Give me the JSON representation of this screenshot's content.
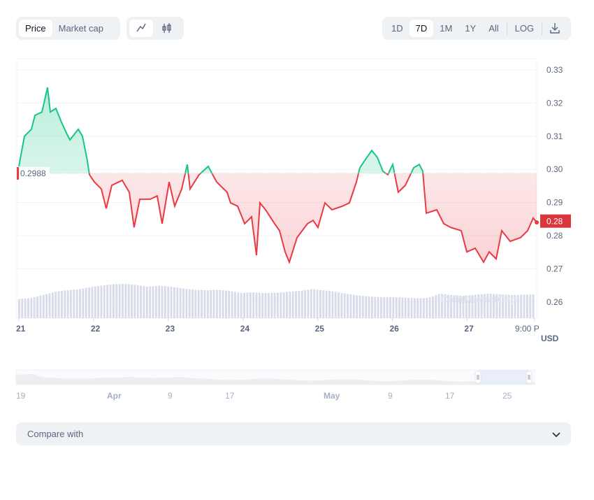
{
  "toolbar": {
    "metric_tabs": [
      {
        "label": "Price",
        "active": true
      },
      {
        "label": "Market cap",
        "active": false
      }
    ],
    "chart_types": [
      {
        "icon": "line-chart-icon",
        "active": true
      },
      {
        "icon": "candlestick-icon",
        "active": false
      }
    ],
    "ranges": [
      {
        "label": "1D",
        "active": false
      },
      {
        "label": "7D",
        "active": true
      },
      {
        "label": "1M",
        "active": false
      },
      {
        "label": "1Y",
        "active": false
      },
      {
        "label": "All",
        "active": false
      }
    ],
    "log_label": "LOG",
    "download_icon": "download-icon"
  },
  "colors": {
    "up": "#16c784",
    "down": "#ea3943",
    "volume": "#d1d6e6",
    "current_badge": "#d9373c"
  },
  "watermark": "CoinMarketCap",
  "compare": {
    "label": "Compare with",
    "icon": "chevron-down-icon"
  },
  "navigator": {
    "labels": [
      "19",
      "Apr",
      "9",
      "17",
      "May",
      "9",
      "17",
      "25"
    ]
  },
  "chart_data": {
    "type": "line",
    "title": "",
    "xlabel": "",
    "ylabel": "USD",
    "ylim": [
      0.255,
      0.333
    ],
    "yticks": [
      "0.33",
      "0.32",
      "0.31",
      "0.30",
      "0.29",
      "0.28",
      "0.27",
      "0.26"
    ],
    "ytick_values": [
      0.33,
      0.32,
      0.31,
      0.3,
      0.29,
      0.28,
      0.27,
      0.26
    ],
    "xticks": [
      "21",
      "22",
      "23",
      "24",
      "25",
      "26",
      "27",
      "9:00 P"
    ],
    "xtick_values": [
      21,
      22,
      23,
      24,
      25,
      26,
      27,
      27.9
    ],
    "xlim": [
      21,
      27.97
    ],
    "baseline": {
      "label": "0.2988",
      "value": 0.2988
    },
    "current": {
      "label": "0.28",
      "value": 0.2845
    },
    "series": [
      {
        "name": "Price",
        "x": [
          21.0,
          21.075,
          21.168,
          21.215,
          21.309,
          21.384,
          21.421,
          21.496,
          21.571,
          21.636,
          21.683,
          21.795,
          21.851,
          21.917,
          21.945,
          22.01,
          22.104,
          22.169,
          22.244,
          22.384,
          22.478,
          22.543,
          22.618,
          22.759,
          22.852,
          22.918,
          23.011,
          23.086,
          23.18,
          23.254,
          23.292,
          23.413,
          23.535,
          23.647,
          23.788,
          23.834,
          23.928,
          24.022,
          24.115,
          24.181,
          24.227,
          24.302,
          24.424,
          24.489,
          24.564,
          24.62,
          24.723,
          24.863,
          24.938,
          25.004,
          25.097,
          25.191,
          25.331,
          25.425,
          25.518,
          25.565,
          25.659,
          25.724,
          25.799,
          25.874,
          25.939,
          26.005,
          26.079,
          26.173,
          26.285,
          26.36,
          26.407,
          26.454,
          26.594,
          26.688,
          26.781,
          26.921,
          26.996,
          27.109,
          27.221,
          27.296,
          27.389,
          27.464,
          27.576,
          27.716,
          27.81,
          27.885,
          27.932
        ],
        "values": [
          0.3009,
          0.31,
          0.3121,
          0.3163,
          0.3173,
          0.3247,
          0.3173,
          0.3184,
          0.3142,
          0.311,
          0.3089,
          0.3121,
          0.31,
          0.3026,
          0.2984,
          0.2962,
          0.2941,
          0.2882,
          0.2952,
          0.2967,
          0.2931,
          0.2825,
          0.291,
          0.291,
          0.292,
          0.2836,
          0.2962,
          0.2889,
          0.2941,
          0.3015,
          0.2941,
          0.2984,
          0.3009,
          0.2962,
          0.2931,
          0.2899,
          0.2889,
          0.2836,
          0.2857,
          0.2741,
          0.2899,
          0.2878,
          0.2836,
          0.2815,
          0.2751,
          0.272,
          0.2794,
          0.2836,
          0.2846,
          0.2825,
          0.2899,
          0.2878,
          0.2889,
          0.2899,
          0.2962,
          0.3005,
          0.3036,
          0.3057,
          0.3036,
          0.2994,
          0.2984,
          0.3015,
          0.2931,
          0.2952,
          0.3005,
          0.3015,
          0.2994,
          0.2868,
          0.2878,
          0.2836,
          0.2825,
          0.2815,
          0.2751,
          0.2762,
          0.272,
          0.2751,
          0.273,
          0.2815,
          0.2783,
          0.2794,
          0.2815,
          0.2853,
          0.284
        ]
      }
    ],
    "volume_relative": [
      0.55,
      0.58,
      0.66,
      0.75,
      0.8,
      0.82,
      0.88,
      0.93,
      0.97,
      0.98,
      0.95,
      0.9,
      0.93,
      0.9,
      0.85,
      0.81,
      0.8,
      0.81,
      0.78,
      0.72,
      0.74,
      0.72,
      0.73,
      0.75,
      0.78,
      0.83,
      0.8,
      0.76,
      0.7,
      0.65,
      0.62,
      0.6,
      0.6,
      0.59,
      0.57,
      0.58,
      0.7,
      0.66,
      0.64,
      0.67,
      0.7,
      0.69,
      0.66,
      0.67,
      0.68
    ]
  }
}
